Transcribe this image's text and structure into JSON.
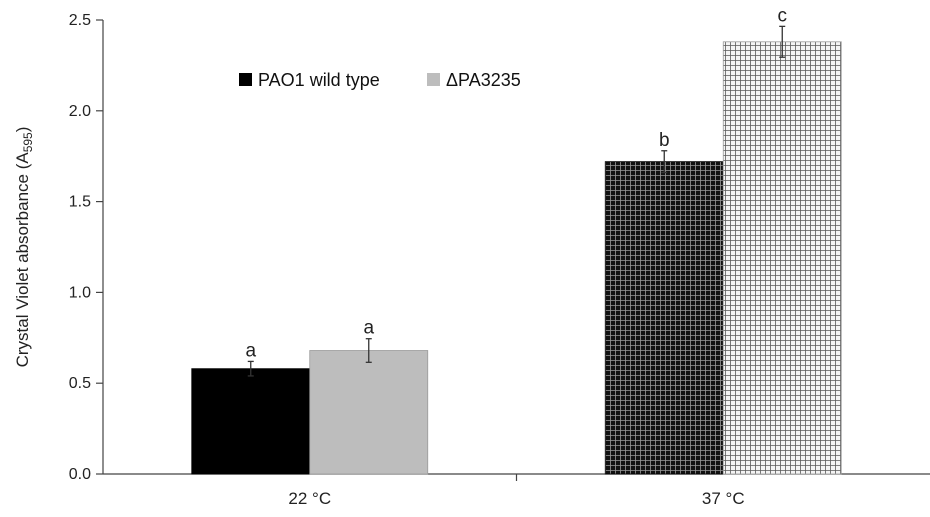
{
  "chart_data": {
    "type": "bar",
    "categories": [
      "22 °C",
      "37 °C"
    ],
    "series": [
      {
        "name": "PAO1 wild type",
        "values": [
          0.58,
          1.72
        ],
        "errors": [
          0.04,
          0.06
        ],
        "sig_labels": [
          "a",
          "b"
        ],
        "color": "#000000"
      },
      {
        "name": "ΔPA3235",
        "values": [
          0.68,
          2.38
        ],
        "errors": [
          0.065,
          0.085
        ],
        "sig_labels": [
          "a",
          "c"
        ],
        "color": "#bdbdbd"
      }
    ],
    "xlabel": "",
    "ylabel_main": "Crystal Violet absorbance (A",
    "ylabel_sub": "595",
    "ylabel_end": ")",
    "ylim": [
      0,
      2.5
    ],
    "yticks": [
      "0.0",
      "0.5",
      "1.0",
      "1.5",
      "2.0",
      "2.5"
    ],
    "legend_position": "top-left",
    "grid": false
  }
}
